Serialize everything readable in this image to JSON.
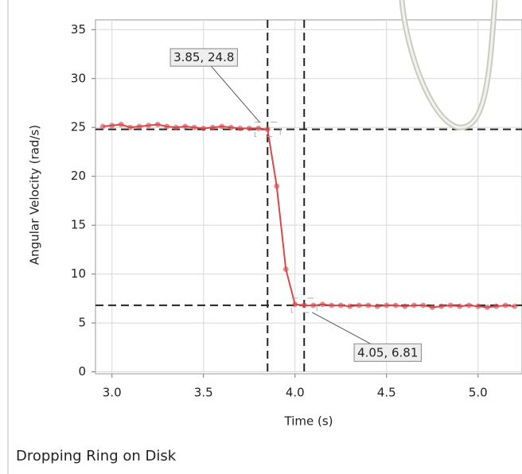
{
  "chart_data": {
    "type": "line",
    "title": "Dropping Ring on Disk",
    "x_label": "Time (s)",
    "y_label": "Angular Velocity (rad/s)",
    "x": [
      2.95,
      3.0,
      3.05,
      3.1,
      3.15,
      3.2,
      3.25,
      3.3,
      3.35,
      3.4,
      3.45,
      3.5,
      3.55,
      3.6,
      3.65,
      3.7,
      3.75,
      3.8,
      3.85,
      3.9,
      3.95,
      4.0,
      4.05,
      4.1,
      4.15,
      4.2,
      4.25,
      4.3,
      4.35,
      4.4,
      4.45,
      4.5,
      4.55,
      4.6,
      4.65,
      4.7,
      4.75,
      4.8,
      4.85,
      4.9,
      4.95,
      5.0,
      5.05,
      5.1,
      5.15,
      5.2
    ],
    "series": [
      {
        "name": "Angular Velocity",
        "color": "#d9474a",
        "values": [
          25.1,
          25.2,
          25.3,
          25.0,
          25.1,
          25.2,
          25.3,
          25.1,
          25.0,
          25.1,
          25.0,
          24.9,
          25.0,
          25.1,
          25.0,
          24.9,
          24.9,
          24.9,
          24.8,
          19.0,
          10.5,
          6.9,
          6.81,
          6.8,
          6.9,
          6.8,
          6.8,
          6.7,
          6.8,
          6.8,
          6.7,
          6.8,
          6.8,
          6.7,
          6.8,
          6.8,
          6.6,
          6.7,
          6.8,
          6.7,
          6.8,
          6.7,
          6.6,
          6.7,
          6.8,
          6.7
        ]
      }
    ],
    "annotations": [
      {
        "x": 3.85,
        "y": 24.8,
        "label": "3.85, 24.8"
      },
      {
        "x": 4.05,
        "y": 6.81,
        "label": "4.05, 6.81"
      }
    ],
    "xlim": [
      2.91,
      5.24
    ],
    "ylim": [
      -0.2,
      36
    ],
    "xticks": [
      {
        "value": 3.0,
        "label": "3.0"
      },
      {
        "value": 3.5,
        "label": "3.5"
      },
      {
        "value": 4.0,
        "label": "4.0"
      },
      {
        "value": 4.5,
        "label": "4.5"
      },
      {
        "value": 5.0,
        "label": "5.0"
      }
    ],
    "yticks": [
      0,
      5,
      10,
      15,
      20,
      25,
      30,
      35
    ],
    "grid": true
  }
}
